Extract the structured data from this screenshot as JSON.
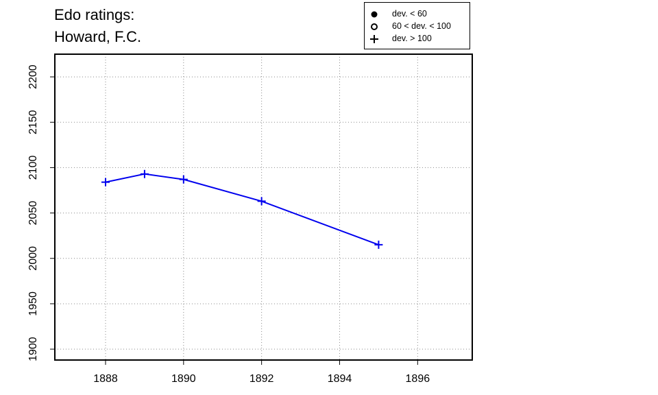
{
  "chart_data": {
    "type": "line",
    "title_lines": [
      "Edo ratings:",
      "Howard, F.C."
    ],
    "xlabel": "",
    "ylabel": "",
    "xlim": [
      1886.7,
      1897.4
    ],
    "ylim": [
      1888,
      2225
    ],
    "x_ticks": [
      1888,
      1890,
      1892,
      1894,
      1896
    ],
    "y_ticks": [
      1900,
      1950,
      2000,
      2050,
      2100,
      2150,
      2200
    ],
    "grid": true,
    "series": [
      {
        "color": "#0000ee",
        "marker": "plus",
        "points": [
          {
            "x": 1888,
            "y": 2084
          },
          {
            "x": 1889,
            "y": 2093
          },
          {
            "x": 1890,
            "y": 2087
          },
          {
            "x": 1892,
            "y": 2063
          },
          {
            "x": 1895,
            "y": 2015
          }
        ]
      }
    ],
    "legend": {
      "position": "top-right",
      "entries": [
        {
          "symbol": "filled-circle",
          "label": "dev. < 60"
        },
        {
          "symbol": "open-circle",
          "label": "60 < dev. < 100"
        },
        {
          "symbol": "plus",
          "label": "dev. > 100"
        }
      ]
    }
  }
}
